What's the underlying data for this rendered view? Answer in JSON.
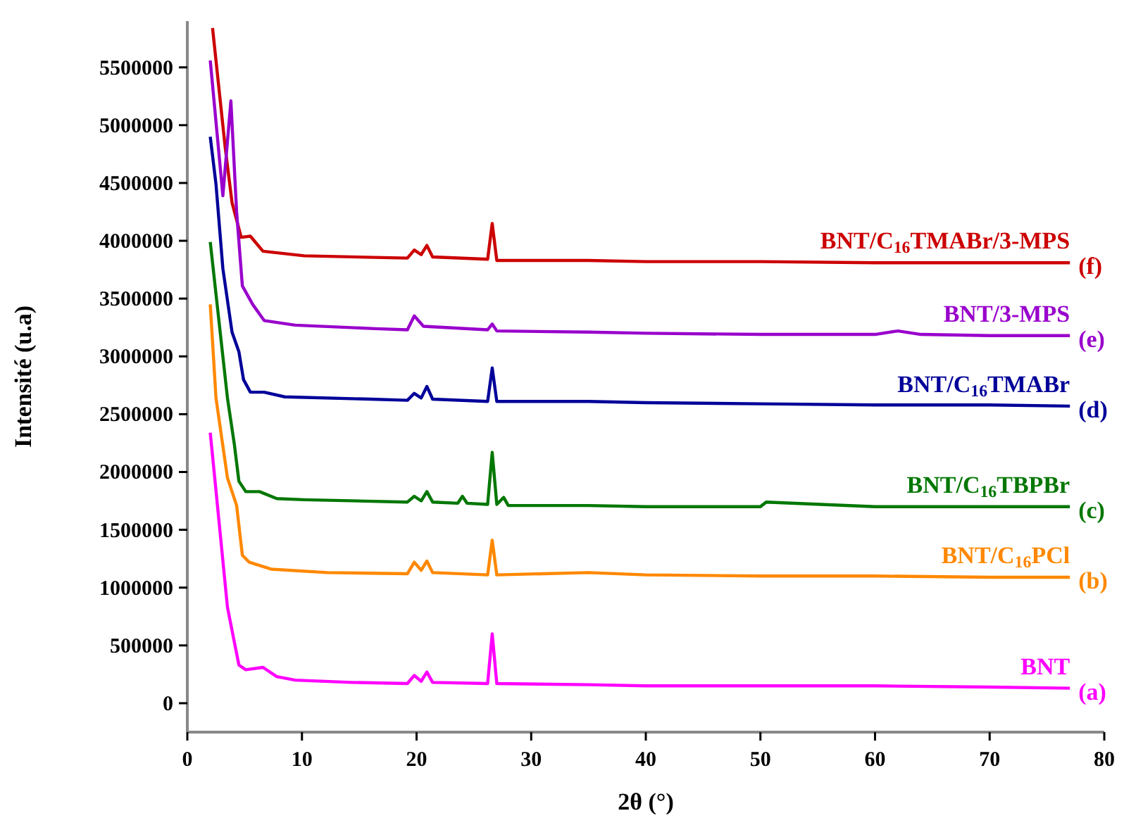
{
  "chart_data": {
    "type": "line",
    "xlabel": "2θ (°)",
    "ylabel": "Intensité (u.a)",
    "xlim": [
      0,
      80
    ],
    "ylim": [
      -250000,
      5900000
    ],
    "xticks": [
      0,
      10,
      20,
      30,
      40,
      50,
      60,
      70,
      80
    ],
    "yticks": [
      0,
      500000,
      1000000,
      1500000,
      2000000,
      2500000,
      3000000,
      3500000,
      4000000,
      4500000,
      5000000,
      5500000
    ],
    "grid": false,
    "marker": "none",
    "line_style": "solid",
    "series": [
      {
        "name": "BNT/C$_{16}$TMABr/3-MPS",
        "color": "#cc0000",
        "x": [
          2.2,
          3.3,
          3.9,
          4.7,
          5.5,
          6.6,
          10.2,
          19.2,
          19.8,
          20.4,
          20.9,
          21.4,
          26.2,
          26.6,
          27,
          35,
          40,
          50,
          60,
          70,
          77
        ],
        "values": [
          5840000,
          4810000,
          4330000,
          4030000,
          4040000,
          3910000,
          3870000,
          3850000,
          3920000,
          3880000,
          3960000,
          3860000,
          3840000,
          4150000,
          3830000,
          3830000,
          3820000,
          3820000,
          3810000,
          3810000,
          3810000
        ]
      },
      {
        "name": "BNT/3-MPS",
        "color": "#9900cc",
        "x": [
          2,
          3.1,
          3.8,
          4.3,
          4.8,
          5.7,
          6.7,
          9.4,
          16.4,
          19.2,
          19.8,
          20.6,
          26.2,
          26.6,
          27,
          35,
          40,
          50,
          60,
          62,
          64,
          70,
          77
        ],
        "values": [
          5560000,
          4390000,
          5210000,
          4250000,
          3610000,
          3450000,
          3310000,
          3270000,
          3240000,
          3230000,
          3350000,
          3260000,
          3230000,
          3280000,
          3220000,
          3210000,
          3200000,
          3190000,
          3190000,
          3220000,
          3190000,
          3180000,
          3180000
        ]
      },
      {
        "name": "BNT/C$_{16}$TMABr",
        "color": "#000099",
        "x": [
          2,
          2.5,
          3.1,
          3.9,
          4.5,
          4.9,
          5.5,
          6.7,
          8.5,
          16,
          19.2,
          19.8,
          20.4,
          20.9,
          21.4,
          26.2,
          26.6,
          27,
          35,
          40,
          50,
          60,
          70,
          77
        ],
        "values": [
          4900000,
          4490000,
          3760000,
          3210000,
          3040000,
          2800000,
          2690000,
          2690000,
          2650000,
          2630000,
          2620000,
          2680000,
          2640000,
          2740000,
          2630000,
          2610000,
          2900000,
          2610000,
          2610000,
          2600000,
          2590000,
          2580000,
          2580000,
          2570000
        ]
      },
      {
        "name": "BNT/C$_{16}$TBPBr",
        "color": "#007700",
        "x": [
          2,
          3.5,
          4.1,
          4.5,
          5.1,
          6.3,
          7.8,
          10.2,
          19.2,
          19.8,
          20.4,
          20.9,
          21.4,
          23.6,
          24,
          24.4,
          26.2,
          26.6,
          27,
          27.6,
          28,
          35,
          40,
          50,
          50.5,
          60,
          70,
          77
        ],
        "values": [
          3990000,
          2640000,
          2240000,
          1920000,
          1830000,
          1830000,
          1770000,
          1760000,
          1740000,
          1790000,
          1750000,
          1830000,
          1740000,
          1730000,
          1790000,
          1730000,
          1720000,
          2170000,
          1720000,
          1780000,
          1710000,
          1710000,
          1700000,
          1700000,
          1740000,
          1700000,
          1700000,
          1700000
        ]
      },
      {
        "name": "BNT/C$_{16}$PCl",
        "color": "#ff8800",
        "x": [
          2,
          2.5,
          3.5,
          4.3,
          4.8,
          5.4,
          7.3,
          12.2,
          19.2,
          19.8,
          20.4,
          20.9,
          21.4,
          26.2,
          26.6,
          27,
          35,
          40,
          50,
          60,
          70,
          77
        ],
        "values": [
          3450000,
          2640000,
          1950000,
          1710000,
          1280000,
          1220000,
          1160000,
          1130000,
          1120000,
          1220000,
          1150000,
          1230000,
          1130000,
          1110000,
          1410000,
          1110000,
          1130000,
          1110000,
          1100000,
          1100000,
          1090000,
          1090000
        ]
      },
      {
        "name": "BNT",
        "color": "#ff00ff",
        "x": [
          2,
          2.3,
          3.5,
          4.5,
          5.1,
          6.6,
          7.8,
          9.4,
          14.3,
          19.2,
          19.8,
          20.4,
          20.9,
          21.4,
          26.2,
          26.6,
          27,
          35,
          40,
          50,
          60,
          70,
          77
        ],
        "values": [
          2340000,
          2040000,
          830000,
          330000,
          290000,
          310000,
          230000,
          200000,
          180000,
          170000,
          240000,
          190000,
          270000,
          180000,
          170000,
          600000,
          170000,
          160000,
          150000,
          150000,
          150000,
          140000,
          130000
        ]
      }
    ],
    "annotations": [
      "(f)",
      "(e)",
      "(d)",
      "(c)",
      "(b)",
      "(a)"
    ]
  }
}
